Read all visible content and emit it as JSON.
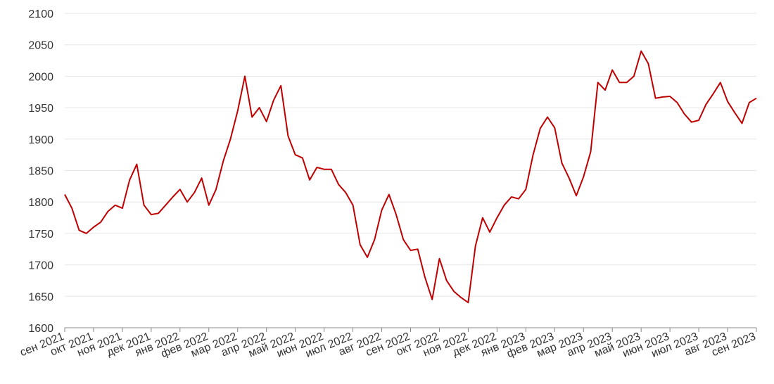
{
  "chart_data": {
    "type": "line",
    "categories": [
      "сен 2021",
      null,
      null,
      null,
      "окт 2021",
      null,
      null,
      null,
      "ноя 2021",
      null,
      null,
      null,
      "дек 2021",
      null,
      null,
      null,
      "янв 2022",
      null,
      null,
      null,
      "фев 2022",
      null,
      null,
      null,
      "мар 2022",
      null,
      null,
      null,
      "апр 2022",
      null,
      null,
      null,
      "май 2022",
      null,
      null,
      null,
      "июн 2022",
      null,
      null,
      null,
      "июл 2022",
      null,
      null,
      null,
      "авг 2022",
      null,
      null,
      null,
      "сен 2022",
      null,
      null,
      null,
      "окт 2022",
      null,
      null,
      null,
      "ноя 2022",
      null,
      null,
      null,
      "дек 2022",
      null,
      null,
      null,
      "янв 2023",
      null,
      null,
      null,
      "фев 2023",
      null,
      null,
      null,
      "мар 2023",
      null,
      null,
      null,
      "апр 2023",
      null,
      null,
      null,
      "май 2023",
      null,
      null,
      null,
      "июн 2023",
      null,
      null,
      null,
      "июл 2023",
      null,
      null,
      null,
      "авг 2023",
      null,
      null,
      null,
      "сен 2023"
    ],
    "values": [
      1812,
      1790,
      1755,
      1750,
      1760,
      1768,
      1785,
      1795,
      1790,
      1835,
      1860,
      1795,
      1780,
      1782,
      1795,
      1808,
      1820,
      1800,
      1815,
      1838,
      1795,
      1820,
      1865,
      1900,
      1945,
      2000,
      1935,
      1950,
      1928,
      1962,
      1985,
      1905,
      1875,
      1870,
      1835,
      1855,
      1852,
      1852,
      1828,
      1815,
      1795,
      1732,
      1712,
      1740,
      1787,
      1812,
      1780,
      1740,
      1723,
      1725,
      1680,
      1645,
      1710,
      1675,
      1658,
      1648,
      1640,
      1730,
      1775,
      1752,
      1775,
      1795,
      1808,
      1805,
      1820,
      1875,
      1917,
      1935,
      1918,
      1862,
      1838,
      1810,
      1840,
      1880,
      1990,
      1978,
      2010,
      1990,
      1990,
      2000,
      2040,
      2020,
      1965,
      1967,
      1968,
      1958,
      1940,
      1927,
      1930,
      1955,
      1972,
      1990,
      1960,
      1942,
      1925,
      1958,
      1965
    ],
    "color": "#c00000",
    "ylim": [
      1600,
      2100
    ],
    "yticks": [
      1600,
      1650,
      1700,
      1750,
      1800,
      1850,
      1900,
      1950,
      2000,
      2050,
      2100
    ],
    "grid": true
  }
}
